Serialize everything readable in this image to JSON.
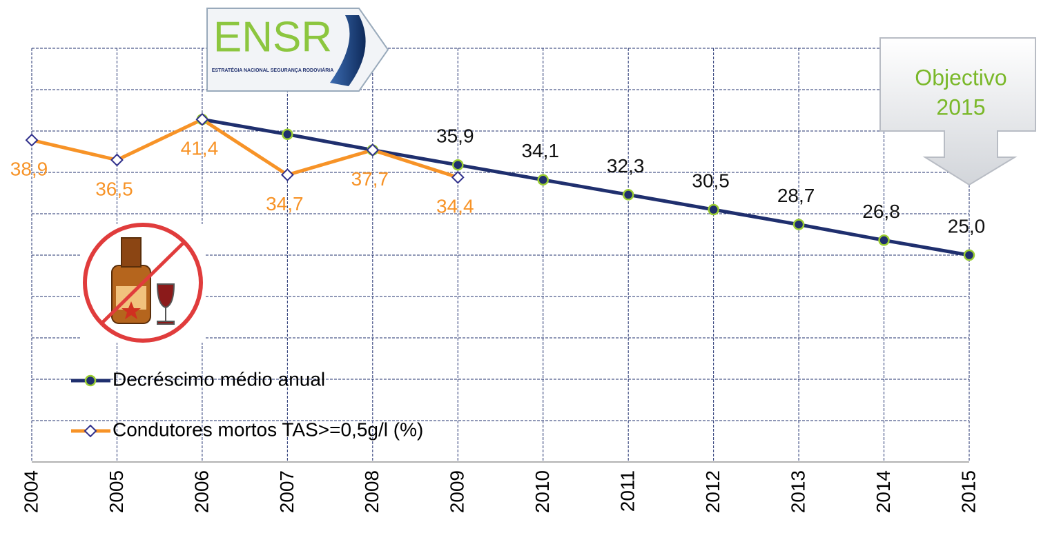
{
  "chart_data": {
    "type": "line",
    "categories": [
      "2004",
      "2005",
      "2006",
      "2007",
      "2008",
      "2009",
      "2010",
      "2011",
      "2012",
      "2013",
      "2014",
      "2015"
    ],
    "series": [
      {
        "name": "Decréscimo médio anual",
        "color": "#1f2f6e",
        "marker": "circle",
        "marker_edge": "#9acd32",
        "values": [
          null,
          null,
          41.4,
          39.6,
          37.7,
          35.9,
          34.1,
          32.3,
          30.5,
          28.7,
          26.8,
          25.0
        ],
        "value_labels": [
          null,
          null,
          null,
          null,
          null,
          "35,9",
          "34,1",
          "32,3",
          "30,5",
          "28,7",
          "26,8",
          "25,0"
        ],
        "label_color": "#111111"
      },
      {
        "name": "Condutores mortos TAS>=0,5g/l (%)",
        "color": "#f79327",
        "marker": "diamond",
        "marker_edge": "#2e2e8a",
        "values": [
          38.9,
          36.5,
          41.4,
          34.7,
          37.7,
          34.4,
          null,
          null,
          null,
          null,
          null,
          null
        ],
        "value_labels": [
          "38,9",
          "36,5",
          "41,4",
          "34,7",
          "37,7",
          "34,4",
          null,
          null,
          null,
          null,
          null,
          null
        ],
        "label_color": "#f79327"
      }
    ],
    "ylim": [
      0,
      50
    ],
    "yticks": [
      0,
      5,
      10,
      15,
      20,
      25,
      30,
      35,
      40,
      45,
      50
    ],
    "grid": true,
    "annotations": {
      "logo": "ENSR",
      "logo_subtitle": "ESTRATÉGIA NACIONAL SEGURANÇA RODOVIÁRIA",
      "callout_line1": "Objectivo",
      "callout_line2": "2015"
    }
  }
}
